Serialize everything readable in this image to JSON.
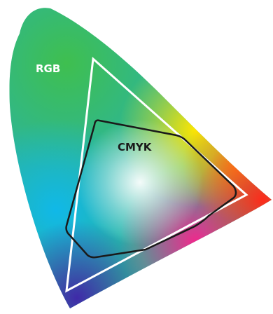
{
  "diagram": {
    "labels": {
      "rgb": "RGB",
      "cmyk": "CMYK"
    },
    "colors": {
      "rgb_outline": "#ffffff",
      "cmyk_outline": "#1a1a1a",
      "rgb_label": "#ffffff",
      "cmyk_label": "#1a1a1a"
    }
  }
}
